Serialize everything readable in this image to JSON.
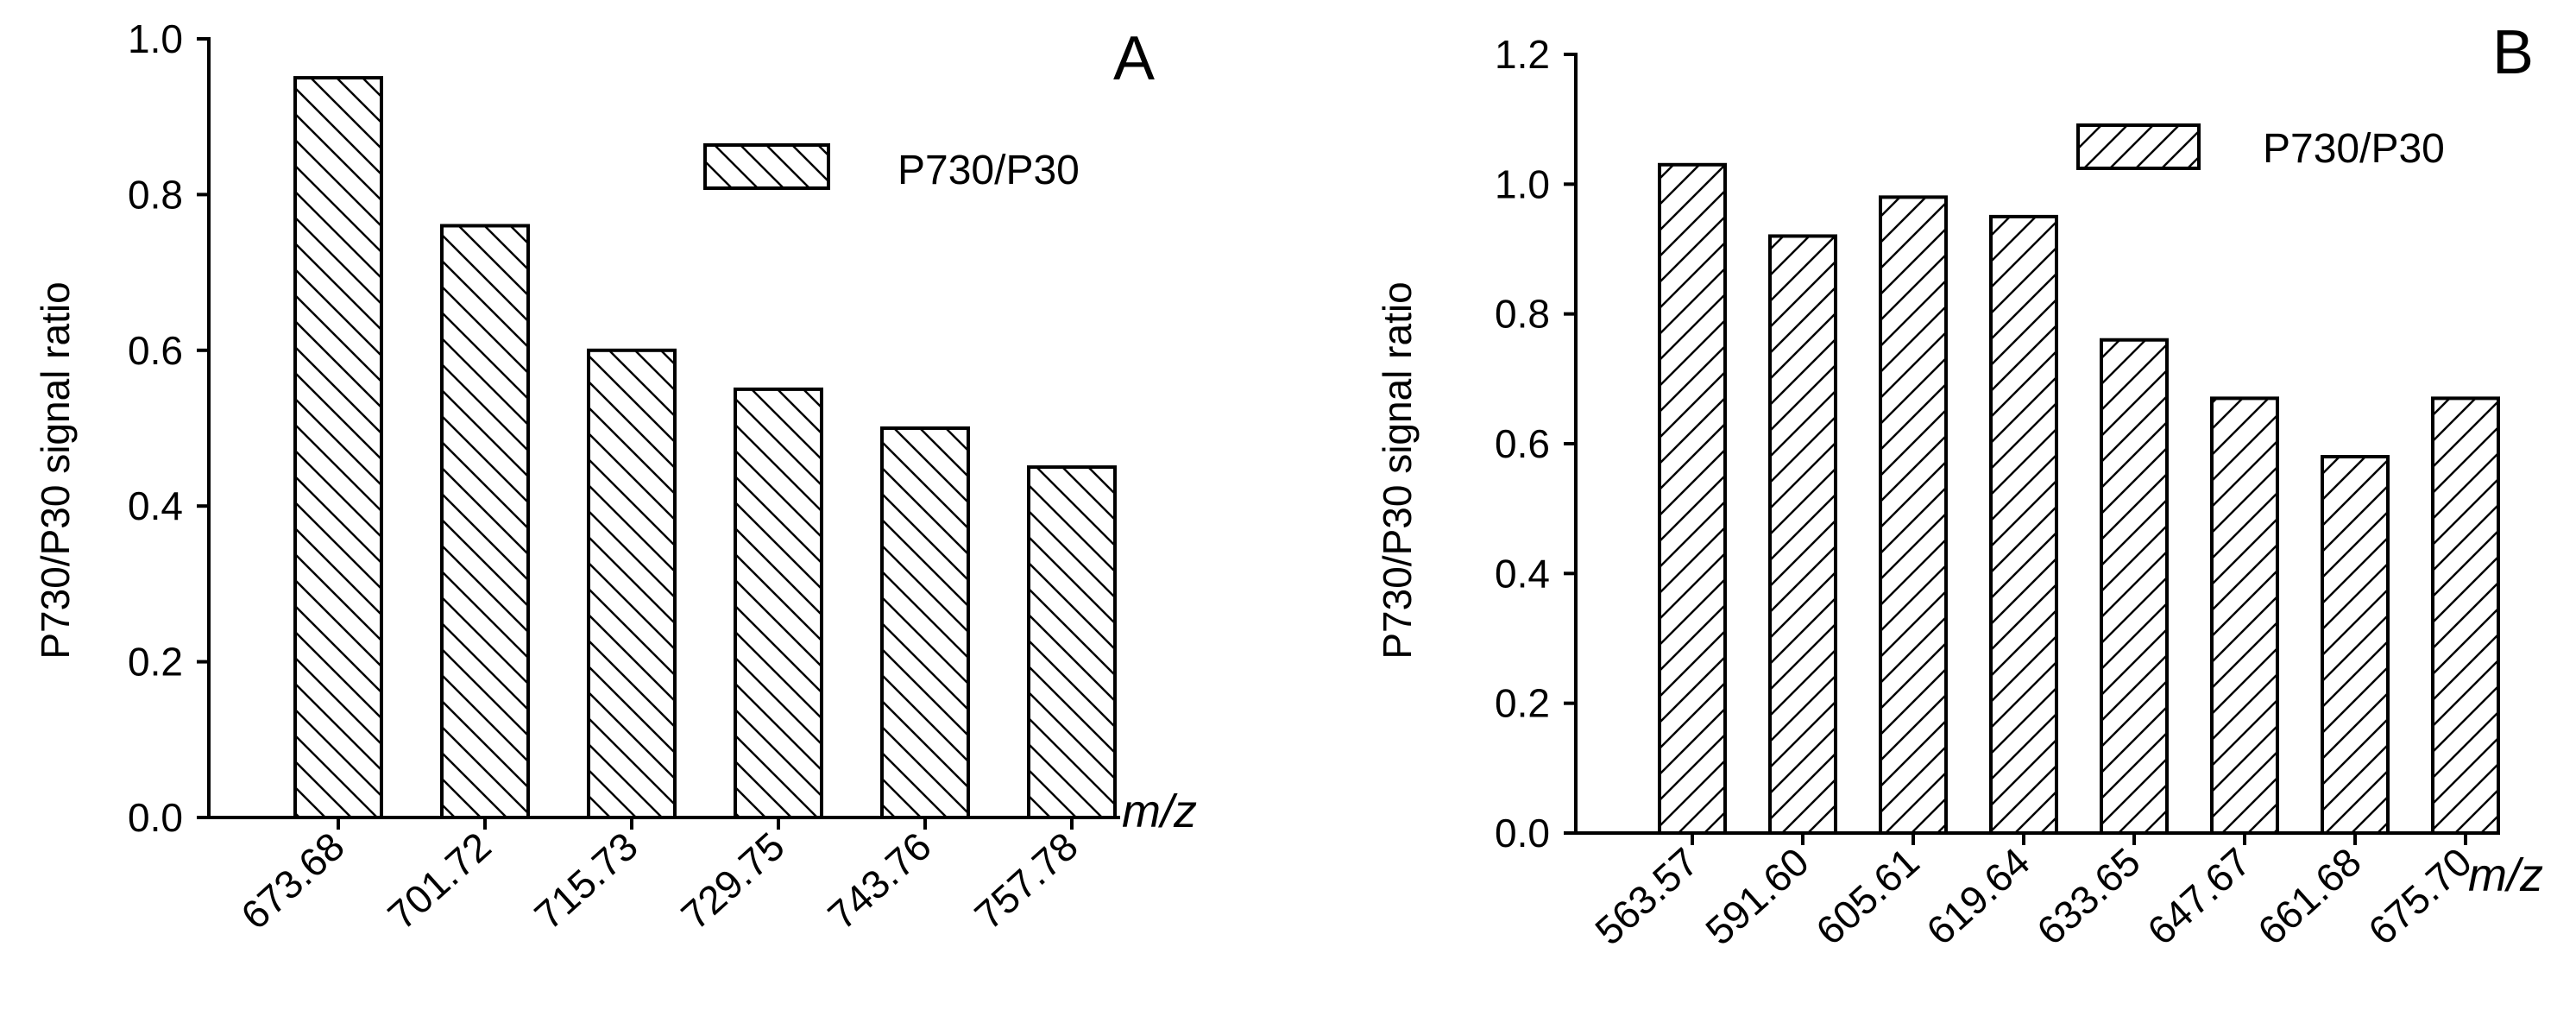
{
  "chart_data": [
    {
      "type": "bar",
      "panel": "A",
      "categories": [
        "673.68",
        "701.72",
        "715.73",
        "729.75",
        "743.76",
        "757.78"
      ],
      "series": [
        {
          "name": "P730/P30",
          "values": [
            0.95,
            0.76,
            0.6,
            0.55,
            0.5,
            0.45
          ],
          "pattern": "backslash-hatch"
        }
      ],
      "xlabel": "m/z",
      "ylabel": "P730/P30 signal ratio",
      "ylim": [
        0,
        1.0
      ],
      "yticks": [
        "0.0",
        "0.2",
        "0.4",
        "0.6",
        "0.8",
        "1.0"
      ],
      "grid": false,
      "legend": "top-right"
    },
    {
      "type": "bar",
      "panel": "B",
      "categories": [
        "563.57",
        "591.60",
        "605.61",
        "619.64",
        "633.65",
        "647.67",
        "661.68",
        "675.70"
      ],
      "series": [
        {
          "name": "P730/P30",
          "values": [
            1.03,
            0.92,
            0.98,
            0.95,
            0.76,
            0.67,
            0.58,
            0.67
          ],
          "pattern": "slash-hatch"
        }
      ],
      "xlabel": "m/z",
      "ylabel": "P730/P30 signal ratio",
      "ylim": [
        0,
        1.2
      ],
      "yticks": [
        "0.0",
        "0.2",
        "0.4",
        "0.6",
        "0.8",
        "1.0",
        "1.2"
      ],
      "grid": false,
      "legend": "top-right"
    }
  ],
  "colors": {
    "stroke": "#000000",
    "background": "#ffffff",
    "bar_fill": "#ffffff"
  }
}
